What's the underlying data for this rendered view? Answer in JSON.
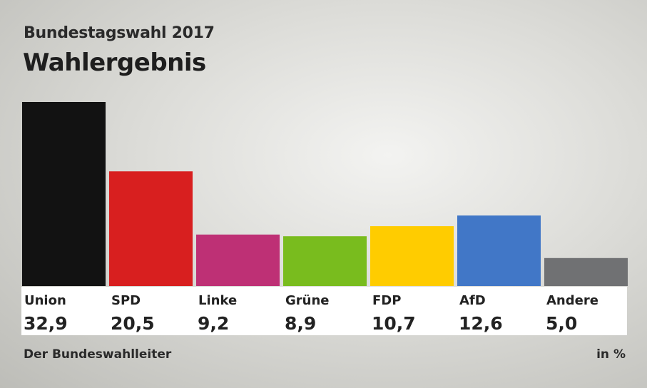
{
  "header": {
    "subtitle": "Bundestagswahl 2017",
    "title": "Wahlergebnis"
  },
  "footer": {
    "source": "Der Bundeswahlleiter",
    "unit": "in %"
  },
  "chart_data": {
    "type": "bar",
    "title": "Wahlergebnis",
    "subtitle": "Bundestagswahl 2017",
    "categories": [
      "Union",
      "SPD",
      "Linke",
      "Grüne",
      "FDP",
      "AfD",
      "Andere"
    ],
    "values": [
      32.9,
      20.5,
      9.2,
      8.9,
      10.7,
      12.6,
      5.0
    ],
    "value_labels": [
      "32,9",
      "20,5",
      "9,2",
      "8,9",
      "10,7",
      "12,6",
      "5,0"
    ],
    "colors": [
      "#121212",
      "#d81f1f",
      "#be3075",
      "#79bc1e",
      "#ffcc00",
      "#4177c7",
      "#707173"
    ],
    "ylabel": "in %",
    "ylim": [
      0,
      32.9
    ],
    "grid": false,
    "legend": "none"
  }
}
